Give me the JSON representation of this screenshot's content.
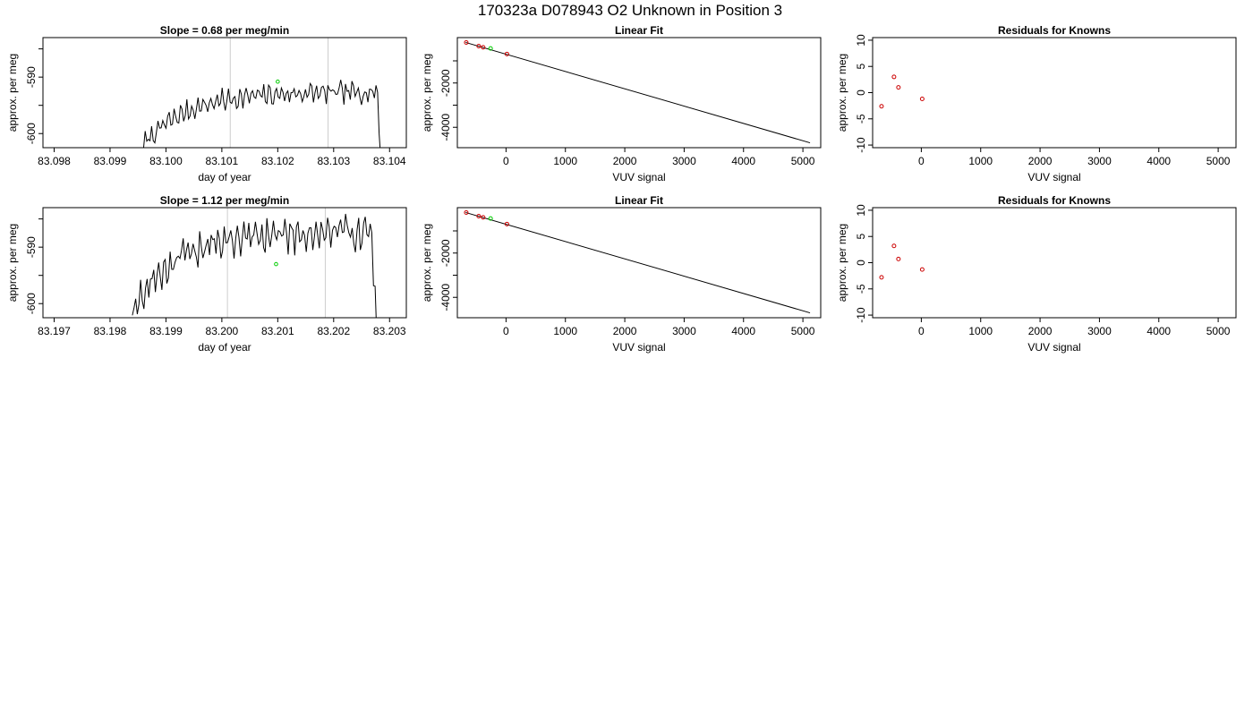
{
  "figure": {
    "title": "170323a      D078943   O2 Unknown in Position  3"
  },
  "chart_data": [
    {
      "type": "line",
      "title": "Slope =  0.68  per meg/min",
      "xlabel": "day of year",
      "ylabel": "approx. per meg",
      "xlim": [
        83.0978,
        83.1043
      ],
      "ylim": [
        -602.5,
        -583
      ],
      "x_ticks": [
        "83.098",
        "83.099",
        "83.100",
        "83.101",
        "83.102",
        "83.103",
        "83.104"
      ],
      "x_tick_values": [
        83.098,
        83.099,
        83.1,
        83.101,
        83.102,
        83.103,
        83.104
      ],
      "y_ticks": [
        "-600",
        "-590"
      ],
      "y_tick_values": [
        -600,
        -590
      ],
      "y_minor_ticks": [
        -595,
        -585
      ],
      "x": {
        "start": 83.0996,
        "end": 83.1039
      },
      "trace": {
        "base": -602,
        "amp": 0.78,
        "noise": 1.1,
        "seed": 7
      },
      "reference_lines": [
        83.10115,
        83.1029
      ],
      "line_color": "#000000",
      "ref_color": "#cccccc",
      "marker": {
        "x": 83.102,
        "y": -590.8,
        "color": "#00cc00"
      }
    },
    {
      "type": "scatter",
      "title": "Linear Fit",
      "xlabel": "VUV signal",
      "ylabel": "approx. per meg",
      "xlim": [
        -820,
        5300
      ],
      "ylim": [
        -4920,
        50
      ],
      "x_ticks": [
        "0",
        "1000",
        "2000",
        "3000",
        "4000",
        "5000"
      ],
      "x_tick_values": [
        0,
        1000,
        2000,
        3000,
        4000,
        5000
      ],
      "y_ticks": [
        "-4000",
        "-2000"
      ],
      "y_tick_values": [
        -4000,
        -2000
      ],
      "y_minor_ticks": [
        -3000,
        -1000
      ],
      "fit_line": {
        "x": [
          -680,
          5120
        ],
        "y": [
          -170,
          -4700
        ]
      },
      "points": [
        {
          "x": -670,
          "y": -170,
          "color": "#cc0000"
        },
        {
          "x": -460,
          "y": -335,
          "color": "#cc0000"
        },
        {
          "x": -385,
          "y": -390,
          "color": "#cc0000"
        },
        {
          "x": 15,
          "y": -690,
          "color": "#cc0000"
        }
      ],
      "unknown_point": {
        "x": -260,
        "y": -440,
        "color": "#00cc00"
      }
    },
    {
      "type": "scatter",
      "title": "Residuals for Knowns",
      "xlabel": "VUV signal",
      "ylabel": "approx. per meg",
      "xlim": [
        -820,
        5300
      ],
      "ylim": [
        -10.5,
        10.5
      ],
      "x_ticks": [
        "0",
        "1000",
        "2000",
        "3000",
        "4000",
        "5000"
      ],
      "x_tick_values": [
        0,
        1000,
        2000,
        3000,
        4000,
        5000
      ],
      "y_ticks": [
        "-10",
        "-5",
        "0",
        "5",
        "10"
      ],
      "y_tick_values": [
        -10,
        -5,
        0,
        5,
        10
      ],
      "points": [
        {
          "x": -670,
          "y": -2.6,
          "color": "#cc0000"
        },
        {
          "x": -460,
          "y": 3.0,
          "color": "#cc0000"
        },
        {
          "x": -385,
          "y": 1.0,
          "color": "#cc0000"
        },
        {
          "x": 15,
          "y": -1.2,
          "color": "#cc0000"
        }
      ]
    },
    {
      "type": "line",
      "title": "Slope =  1.12  per meg/min",
      "xlabel": "day of year",
      "ylabel": "approx. per meg",
      "xlim": [
        83.1968,
        83.2033
      ],
      "ylim": [
        -602.5,
        -583
      ],
      "x_ticks": [
        "83.197",
        "83.198",
        "83.199",
        "83.200",
        "83.201",
        "83.202",
        "83.203"
      ],
      "x_tick_values": [
        83.197,
        83.198,
        83.199,
        83.2,
        83.201,
        83.202,
        83.203
      ],
      "y_ticks": [
        "-600",
        "-590"
      ],
      "y_tick_values": [
        -600,
        -590
      ],
      "y_minor_ticks": [
        -595,
        -585
      ],
      "x": {
        "start": 83.1984,
        "end": 83.2028
      },
      "trace": {
        "base": -601,
        "amp": 1.15,
        "noise": 1.9,
        "seed": 19
      },
      "reference_lines": [
        83.2001,
        83.20185
      ],
      "line_color": "#000000",
      "ref_color": "#cccccc",
      "marker": {
        "x": 83.20097,
        "y": -593.0,
        "color": "#00cc00"
      }
    },
    {
      "type": "scatter",
      "title": "Linear Fit",
      "xlabel": "VUV signal",
      "ylabel": "approx. per meg",
      "xlim": [
        -820,
        5300
      ],
      "ylim": [
        -4920,
        50
      ],
      "x_ticks": [
        "0",
        "1000",
        "2000",
        "3000",
        "4000",
        "5000"
      ],
      "x_tick_values": [
        0,
        1000,
        2000,
        3000,
        4000,
        5000
      ],
      "y_ticks": [
        "-4000",
        "-2000"
      ],
      "y_tick_values": [
        -4000,
        -2000
      ],
      "y_minor_ticks": [
        -3000,
        -1000
      ],
      "fit_line": {
        "x": [
          -680,
          5120
        ],
        "y": [
          -170,
          -4700
        ]
      },
      "points": [
        {
          "x": -670,
          "y": -170,
          "color": "#cc0000"
        },
        {
          "x": -460,
          "y": -335,
          "color": "#cc0000"
        },
        {
          "x": -385,
          "y": -390,
          "color": "#cc0000"
        },
        {
          "x": 15,
          "y": -690,
          "color": "#cc0000"
        }
      ],
      "unknown_point": {
        "x": -260,
        "y": -440,
        "color": "#00cc00"
      }
    },
    {
      "type": "scatter",
      "title": "Residuals for Knowns",
      "xlabel": "VUV signal",
      "ylabel": "approx. per meg",
      "xlim": [
        -820,
        5300
      ],
      "ylim": [
        -10.5,
        10.5
      ],
      "x_ticks": [
        "0",
        "1000",
        "2000",
        "3000",
        "4000",
        "5000"
      ],
      "x_tick_values": [
        0,
        1000,
        2000,
        3000,
        4000,
        5000
      ],
      "y_ticks": [
        "-10",
        "-5",
        "0",
        "5",
        "10"
      ],
      "y_tick_values": [
        -10,
        -5,
        0,
        5,
        10
      ],
      "points": [
        {
          "x": -670,
          "y": -2.8,
          "color": "#cc0000"
        },
        {
          "x": -460,
          "y": 3.2,
          "color": "#cc0000"
        },
        {
          "x": -385,
          "y": 0.7,
          "color": "#cc0000"
        },
        {
          "x": 15,
          "y": -1.3,
          "color": "#cc0000"
        }
      ]
    }
  ]
}
